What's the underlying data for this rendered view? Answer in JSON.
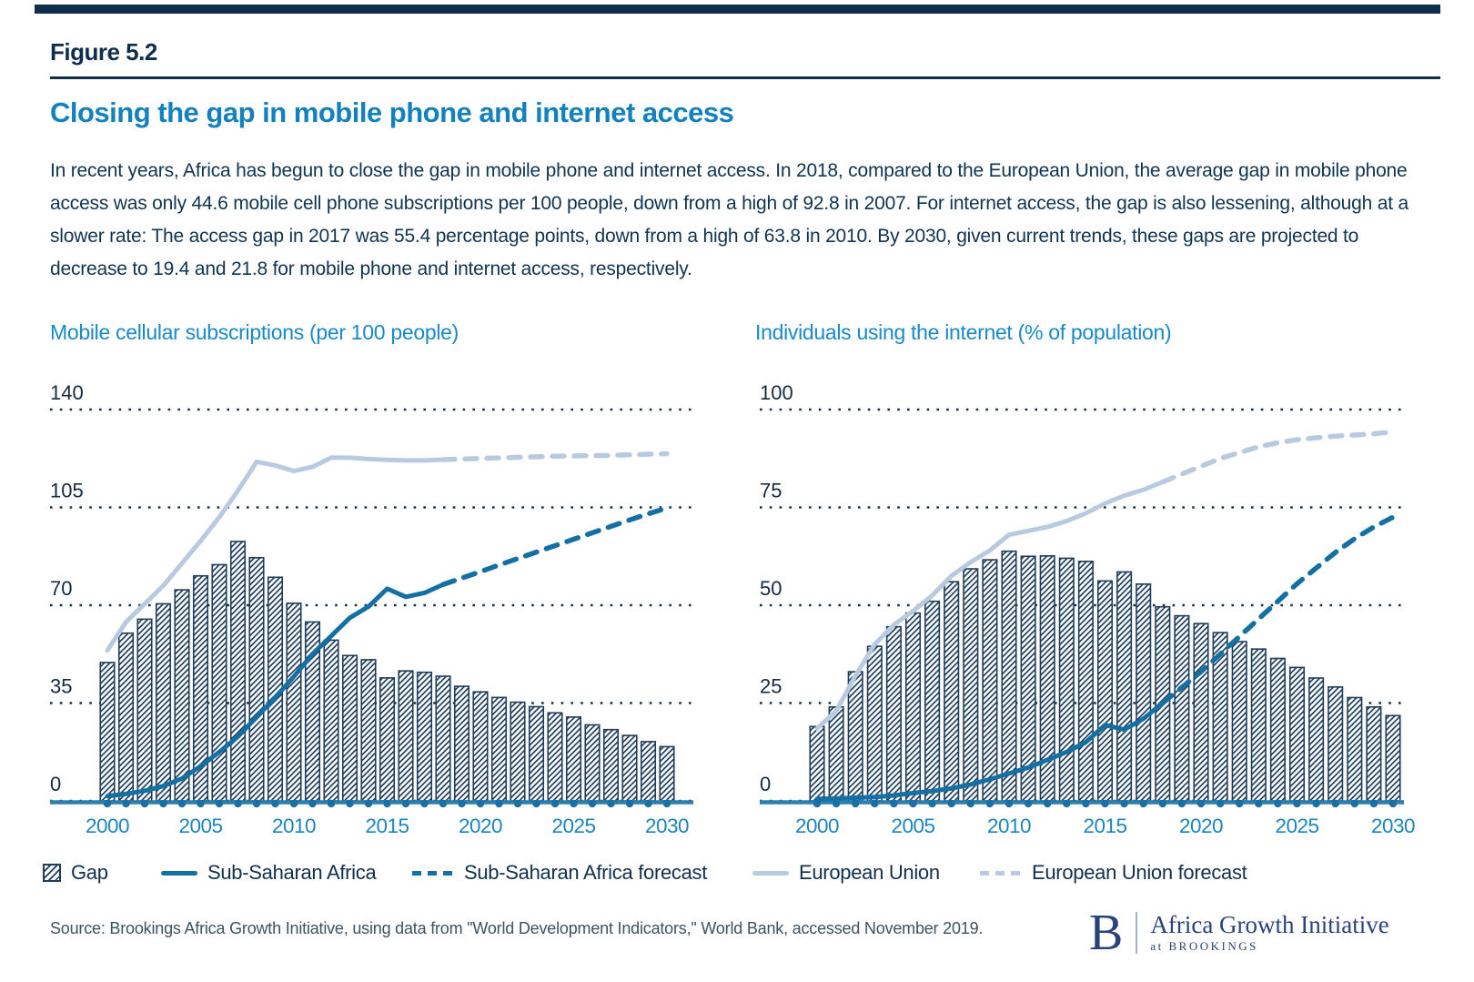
{
  "page": {
    "figure_label": "Figure 5.2",
    "title": "Closing the gap in mobile phone and internet access",
    "description": "In recent years, Africa has begun to close the gap in mobile phone and internet access. In 2018, compared to the European Union, the average gap in mobile phone access was only 44.6 mobile cell phone subscriptions per 100 people, down from a high of 92.8 in 2007. For internet access, the gap is also lessening, although at a slower rate: The access gap in 2017 was 55.4 percentage points, down from a high of 63.8 in 2010. By 2030, given current trends, these gaps are projected to decrease to 19.4 and 21.8 for mobile phone and internet access, respectively.",
    "source": "Source: Brookings Africa Growth Initiative, using data from \"World Development Indicators,\" World Bank, accessed November 2019.",
    "logo": {
      "initial": "B",
      "name": "Africa Growth Initiative",
      "sub": "at BROOKINGS"
    }
  },
  "legend": [
    {
      "label": "Gap",
      "swatch": "hatch"
    },
    {
      "label": "Sub-Saharan Africa",
      "swatch": "line-solid-dark"
    },
    {
      "label": "Sub-Saharan Africa forecast",
      "swatch": "line-dash-dark"
    },
    {
      "label": "European Union",
      "swatch": "line-solid-light"
    },
    {
      "label": "European Union forecast",
      "swatch": "line-dash-light"
    }
  ],
  "colors": {
    "navy": "#0E2E4B",
    "title_blue": "#1380BF",
    "chart_title_blue": "#1989C8",
    "body_text": "#10344F",
    "bar_line": "#1F3D59",
    "grid_dot": "#16304A",
    "ssa_blue": "#146FA3",
    "eu_blue": "#B8CADF",
    "axis_blue": "#2B7FB0",
    "year_dot": "#1B6FA3",
    "x_label_blue": "#1C85BE",
    "y_label_navy": "#132A40",
    "source_text": "#3C5360",
    "logo_navy": "#28427A",
    "legend_text": "#13304A"
  },
  "chart_data": [
    {
      "type": "bar+line combo",
      "title": "Mobile cellular subscriptions (per 100 people)",
      "ylim": [
        0,
        140
      ],
      "yticks": [
        0,
        35,
        70,
        105,
        140
      ],
      "xticks": [
        2000,
        2005,
        2010,
        2015,
        2020,
        2025,
        2030
      ],
      "years": {
        "start": 2000,
        "end": 2030
      },
      "grid": "dotted horizontal rows",
      "legend_position": "bottom shared",
      "series": [
        {
          "name": "Gap",
          "style": "bar-hatched",
          "x_start": 2000,
          "values": [
            49.5,
            60,
            65,
            70.5,
            75.5,
            80.5,
            84.5,
            92.8,
            87,
            80,
            70.7,
            64,
            57.5,
            52,
            50.5,
            44,
            46.5,
            46,
            44.6,
            41,
            39,
            37,
            35.3,
            33.7,
            31.5,
            30,
            27.2,
            25.5,
            23.4,
            21.2,
            19.4
          ]
        },
        {
          "name": "European Union",
          "style": "line-solid-light",
          "x_start": 2000,
          "values": [
            53.8,
            64,
            70.5,
            77,
            85,
            93,
            101.5,
            111,
            121.3,
            120,
            118,
            119.5,
            122.8,
            122.8,
            122.3,
            122,
            121.8,
            121.8,
            122.1
          ]
        },
        {
          "name": "European Union forecast",
          "style": "line-dash-light",
          "x_start": 2018,
          "values": [
            122.1,
            122.3,
            122.5,
            122.7,
            122.9,
            123.1,
            123.3,
            123.4,
            123.5,
            123.6,
            123.8,
            124,
            124.2
          ]
        },
        {
          "name": "Sub-Saharan Africa",
          "style": "line-solid-dark",
          "x_start": 2000,
          "values": [
            1.7,
            2.5,
            3.6,
            5.3,
            8,
            12.4,
            17.5,
            23,
            30,
            37,
            44.5,
            52.5,
            59,
            65.5,
            69.5,
            75.9,
            73,
            74.4,
            77.4
          ]
        },
        {
          "name": "Sub-Saharan Africa forecast",
          "style": "line-dash-dark",
          "x_start": 2018,
          "values": [
            77.4,
            79.7,
            82,
            84.4,
            86.7,
            89,
            91.3,
            93.6,
            95.9,
            98.2,
            100.5,
            102.7,
            104.8
          ]
        }
      ]
    },
    {
      "type": "bar+line combo",
      "title": "Individuals using the internet (% of population)",
      "ylim": [
        0,
        100
      ],
      "yticks": [
        0,
        25,
        50,
        75,
        100
      ],
      "xticks": [
        2000,
        2005,
        2010,
        2015,
        2020,
        2025,
        2030
      ],
      "years": {
        "start": 2000,
        "end": 2030
      },
      "grid": "dotted horizontal rows",
      "legend_position": "bottom shared",
      "series": [
        {
          "name": "Gap",
          "style": "bar-hatched",
          "x_start": 2000,
          "values": [
            19,
            24,
            33,
            39.5,
            44.5,
            48,
            51,
            56,
            59.3,
            61.6,
            63.8,
            62.5,
            62.6,
            62,
            61.2,
            56.2,
            58.5,
            55.4,
            49.6,
            47.3,
            45.3,
            43,
            40.7,
            38.8,
            36.4,
            34.1,
            31.4,
            29.1,
            26.4,
            24,
            21.8
          ]
        },
        {
          "name": "European Union",
          "style": "line-solid-light",
          "x_start": 2000,
          "values": [
            18.5,
            23,
            32,
            40,
            45,
            48.5,
            52.5,
            57.5,
            61,
            64,
            68,
            69,
            70,
            71.5,
            73.5,
            76,
            78,
            79.5,
            81.5
          ]
        },
        {
          "name": "European Union forecast",
          "style": "line-dash-light",
          "x_start": 2018,
          "values": [
            81.5,
            83.5,
            85.5,
            87.5,
            89,
            90.5,
            91.5,
            92.3,
            92.8,
            93.2,
            93.5,
            93.8,
            94.3
          ]
        },
        {
          "name": "Sub-Saharan Africa",
          "style": "line-solid-dark",
          "x_start": 2000,
          "values": [
            0.5,
            0.6,
            0.8,
            1,
            1.4,
            2,
            2.5,
            3.2,
            4.2,
            5.5,
            7,
            8.5,
            10.5,
            12.5,
            15,
            19.4,
            18.2,
            21,
            25
          ]
        },
        {
          "name": "Sub-Saharan Africa forecast",
          "style": "line-dash-dark",
          "x_start": 2018,
          "values": [
            25,
            29,
            33,
            37.5,
            42,
            46.5,
            51,
            55.5,
            59.5,
            63.5,
            67,
            70,
            72.5
          ]
        }
      ]
    }
  ]
}
